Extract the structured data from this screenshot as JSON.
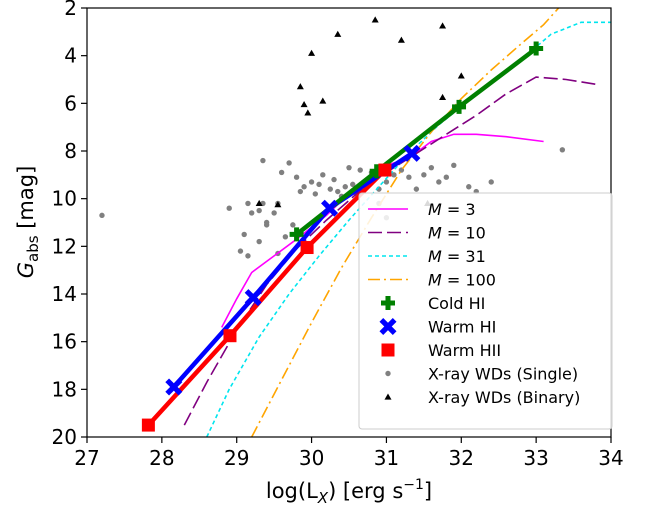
{
  "chart_data": {
    "type": "line",
    "xlabel_main": "log(L",
    "xlabel_sub": "X",
    "xlabel_rest": ") [erg s",
    "xlabel_sup": "−1",
    "xlabel_end": "]",
    "ylabel_main": "G",
    "ylabel_sub": "abs",
    "ylabel_rest": " [mag]",
    "xlim": [
      27,
      34
    ],
    "ylim": [
      20,
      2
    ],
    "y_inverted": true,
    "xticks": [
      "27",
      "28",
      "29",
      "30",
      "31",
      "32",
      "33",
      "34"
    ],
    "yticks": [
      "2",
      "4",
      "6",
      "8",
      "10",
      "12",
      "14",
      "16",
      "18",
      "20"
    ],
    "legend_position": "lower-right",
    "model_curves": [
      {
        "name": "M = 3",
        "label_var": "M",
        "label_val": " = 3",
        "color": "#ff00ff",
        "style": "solid",
        "points": [
          [
            28.8,
            15.4
          ],
          [
            29.0,
            14.2
          ],
          [
            29.2,
            13.1
          ],
          [
            29.5,
            12.4
          ],
          [
            29.8,
            11.7
          ],
          [
            30.2,
            10.7
          ],
          [
            30.6,
            9.5
          ],
          [
            31.0,
            8.6
          ],
          [
            31.3,
            8.3
          ],
          [
            31.6,
            7.6
          ],
          [
            31.9,
            7.3
          ],
          [
            32.2,
            7.3
          ],
          [
            32.6,
            7.4
          ],
          [
            33.1,
            7.6
          ]
        ]
      },
      {
        "name": "M = 10",
        "label_var": "M",
        "label_val": " = 10",
        "color": "#800080",
        "style": "longdash",
        "points": [
          [
            28.3,
            19.5
          ],
          [
            28.6,
            17.7
          ],
          [
            29.0,
            15.5
          ],
          [
            29.4,
            13.6
          ],
          [
            29.8,
            12.1
          ],
          [
            30.2,
            10.9
          ],
          [
            30.6,
            9.8
          ],
          [
            31.0,
            8.9
          ],
          [
            31.4,
            8.1
          ],
          [
            31.8,
            7.3
          ],
          [
            32.2,
            6.5
          ],
          [
            32.6,
            5.6
          ],
          [
            33.0,
            4.9
          ],
          [
            33.4,
            5.0
          ],
          [
            33.8,
            5.2
          ]
        ]
      },
      {
        "name": "M = 31",
        "label_var": "M",
        "label_val": " = 31",
        "color": "#00e5ee",
        "style": "dash",
        "points": [
          [
            28.6,
            20.0
          ],
          [
            28.9,
            18.0
          ],
          [
            29.3,
            15.8
          ],
          [
            29.7,
            14.0
          ],
          [
            30.1,
            12.4
          ],
          [
            30.5,
            10.9
          ],
          [
            30.9,
            9.5
          ],
          [
            31.3,
            8.1
          ],
          [
            31.7,
            6.9
          ],
          [
            32.1,
            5.9
          ],
          [
            32.5,
            4.9
          ],
          [
            32.9,
            3.9
          ],
          [
            33.2,
            3.1
          ],
          [
            33.6,
            2.6
          ],
          [
            34.0,
            2.6
          ]
        ]
      },
      {
        "name": "M = 100",
        "label_var": "M",
        "label_val": " = 100",
        "color": "#ffa500",
        "style": "dashdot",
        "points": [
          [
            29.2,
            20.0
          ],
          [
            29.6,
            17.6
          ],
          [
            30.0,
            15.2
          ],
          [
            30.4,
            12.9
          ],
          [
            30.8,
            10.8
          ],
          [
            31.2,
            8.8
          ],
          [
            31.6,
            7.2
          ],
          [
            32.0,
            5.8
          ],
          [
            32.4,
            4.6
          ],
          [
            32.8,
            3.5
          ],
          [
            33.1,
            2.7
          ],
          [
            33.3,
            2.0
          ]
        ]
      }
    ],
    "data_series": [
      {
        "name": "Cold HI",
        "color": "#008000",
        "marker": "plus",
        "points": [
          [
            29.8,
            11.5
          ],
          [
            30.87,
            8.85
          ],
          [
            31.97,
            6.15
          ],
          [
            33.0,
            3.7
          ]
        ]
      },
      {
        "name": "Warm HI",
        "color": "#0000ff",
        "marker": "x",
        "points": [
          [
            28.16,
            17.9
          ],
          [
            29.22,
            14.15
          ],
          [
            30.24,
            10.4
          ],
          [
            31.34,
            8.1
          ]
        ]
      },
      {
        "name": "Warm HII",
        "color": "#ff0000",
        "marker": "square",
        "points": [
          [
            27.82,
            19.5
          ],
          [
            28.91,
            15.75
          ],
          [
            29.94,
            12.05
          ],
          [
            30.98,
            8.8
          ]
        ]
      }
    ],
    "scatter_series": [
      {
        "name": "X-ray WDs (Single)",
        "color": "#808080",
        "marker": "circle",
        "points": [
          [
            27.2,
            10.7
          ],
          [
            28.9,
            10.4
          ],
          [
            29.15,
            10.2
          ],
          [
            29.2,
            10.6
          ],
          [
            29.3,
            10.5
          ],
          [
            29.35,
            10.2
          ],
          [
            29.4,
            11.1
          ],
          [
            29.5,
            10.6
          ],
          [
            29.55,
            10.2
          ],
          [
            29.6,
            8.9
          ],
          [
            29.8,
            9.1
          ],
          [
            29.85,
            9.7
          ],
          [
            29.9,
            9.5
          ],
          [
            30.0,
            9.3
          ],
          [
            30.05,
            9.8
          ],
          [
            30.1,
            9.4
          ],
          [
            30.15,
            9.0
          ],
          [
            30.25,
            9.6
          ],
          [
            30.3,
            9.2
          ],
          [
            30.35,
            9.7
          ],
          [
            30.4,
            9.9
          ],
          [
            30.45,
            9.5
          ],
          [
            30.5,
            8.7
          ],
          [
            30.55,
            9.4
          ],
          [
            30.6,
            9.8
          ],
          [
            30.65,
            8.8
          ],
          [
            30.7,
            9.3
          ],
          [
            30.8,
            8.9
          ],
          [
            30.9,
            9.6
          ],
          [
            31.0,
            9.3
          ],
          [
            31.1,
            9.0
          ],
          [
            31.2,
            8.8
          ],
          [
            31.3,
            9.1
          ],
          [
            31.4,
            9.6
          ],
          [
            31.5,
            9.0
          ],
          [
            31.6,
            8.7
          ],
          [
            31.7,
            9.3
          ],
          [
            31.8,
            9.1
          ],
          [
            31.9,
            8.6
          ],
          [
            32.1,
            9.5
          ],
          [
            32.2,
            9.7
          ],
          [
            32.4,
            9.3
          ],
          [
            29.05,
            12.2
          ],
          [
            29.1,
            11.5
          ],
          [
            29.15,
            12.4
          ],
          [
            29.3,
            11.8
          ],
          [
            29.4,
            11.0
          ],
          [
            29.55,
            12.3
          ],
          [
            29.65,
            11.6
          ],
          [
            29.75,
            11.1
          ],
          [
            30.9,
            10.2
          ],
          [
            31.0,
            10.8
          ],
          [
            33.35,
            7.95
          ],
          [
            29.7,
            8.5
          ],
          [
            29.35,
            8.4
          ]
        ]
      },
      {
        "name": "X-ray WDs (Binary)",
        "color": "#000000",
        "marker": "triangle",
        "points": [
          [
            29.85,
            5.3
          ],
          [
            29.9,
            6.05
          ],
          [
            29.95,
            6.4
          ],
          [
            30.0,
            3.9
          ],
          [
            30.15,
            5.9
          ],
          [
            30.35,
            3.1
          ],
          [
            30.85,
            2.5
          ],
          [
            31.2,
            3.35
          ],
          [
            31.55,
            10.2
          ],
          [
            31.75,
            5.75
          ],
          [
            31.75,
            2.75
          ],
          [
            32.0,
            4.85
          ],
          [
            29.3,
            10.2
          ],
          [
            29.55,
            10.25
          ]
        ]
      }
    ]
  }
}
